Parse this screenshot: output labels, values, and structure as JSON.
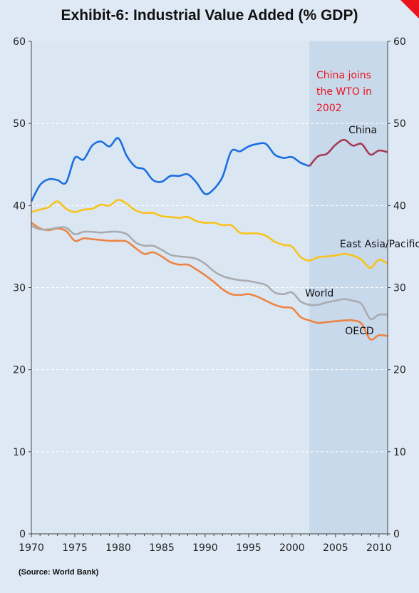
{
  "title": "Exhibit-6: Industrial Value Added (% GDP)",
  "source": "(Source: World Bank)",
  "colors": {
    "background": "#dfe9f5",
    "plot": "#dbe6f3",
    "shade": "#c9d9ec",
    "china": "#1a6fe0",
    "china_post_wto": "#a43c55",
    "east_asia": "#f7c31c",
    "world": "#a9abaf",
    "oecd": "#ed8443",
    "annotation": "#e8141b",
    "corner": "#e8141b"
  },
  "chart_data": {
    "type": "line",
    "title": "Exhibit-6: Industrial Value Added (% GDP)",
    "xlabel": "",
    "ylabel": "",
    "xlim": [
      1970,
      2011
    ],
    "ylim": [
      0,
      60
    ],
    "x_ticks": [
      1970,
      1975,
      1980,
      1985,
      1990,
      1995,
      2000,
      2005,
      2010
    ],
    "y_ticks": [
      0,
      10,
      20,
      30,
      40,
      50,
      60
    ],
    "grid": "horizontal dashed",
    "secondary_y_axis": true,
    "shaded_region": {
      "from": 2002,
      "to": 2011
    },
    "annotation": {
      "lines": [
        "China joins",
        "the WTO in",
        "2002"
      ],
      "x": 2002.8,
      "y": 55.5
    },
    "x": [
      1970,
      1971,
      1972,
      1973,
      1974,
      1975,
      1976,
      1977,
      1978,
      1979,
      1980,
      1981,
      1982,
      1983,
      1984,
      1985,
      1986,
      1987,
      1988,
      1989,
      1990,
      1991,
      1992,
      1993,
      1994,
      1995,
      1996,
      1997,
      1998,
      1999,
      2000,
      2001,
      2002,
      2003,
      2004,
      2005,
      2006,
      2007,
      2008,
      2009,
      2010,
      2011
    ],
    "series": [
      {
        "name": "China",
        "color_key": "china",
        "post_wto_color_key": "china_post_wto",
        "split_x": 2002,
        "label_x": 2006.5,
        "label_y": 48.8,
        "values": [
          40.5,
          42.5,
          43.2,
          43.1,
          42.8,
          45.8,
          45.6,
          47.3,
          47.8,
          47.2,
          48.2,
          46.0,
          44.7,
          44.4,
          43.1,
          42.9,
          43.6,
          43.6,
          43.8,
          42.8,
          41.4,
          42.0,
          43.5,
          46.6,
          46.6,
          47.2,
          47.5,
          47.5,
          46.2,
          45.8,
          45.9,
          45.2,
          44.8,
          46.0,
          46.3,
          47.4,
          48.0,
          47.3,
          47.5,
          46.2,
          46.7,
          46.5
        ]
      },
      {
        "name": "East Asia/Pacific",
        "color_key": "east_asia",
        "label_x": 2005.5,
        "label_y": 34.9,
        "values": [
          39.2,
          39.5,
          39.8,
          40.5,
          39.6,
          39.2,
          39.5,
          39.6,
          40.1,
          40.0,
          40.7,
          40.2,
          39.4,
          39.1,
          39.1,
          38.7,
          38.6,
          38.5,
          38.6,
          38.1,
          37.9,
          37.9,
          37.6,
          37.6,
          36.7,
          36.6,
          36.6,
          36.3,
          35.6,
          35.2,
          35.0,
          33.7,
          33.3,
          33.7,
          33.8,
          33.9,
          34.1,
          33.9,
          33.4,
          32.4,
          33.4,
          32.9
        ]
      },
      {
        "name": "World",
        "color_key": "world",
        "label_x": 2001.5,
        "label_y": 28.9,
        "values": [
          37.5,
          37.1,
          37.1,
          37.3,
          37.3,
          36.5,
          36.8,
          36.8,
          36.7,
          36.8,
          36.8,
          36.5,
          35.5,
          35.1,
          35.1,
          34.6,
          34.0,
          33.8,
          33.7,
          33.5,
          32.9,
          32.0,
          31.4,
          31.1,
          30.9,
          30.8,
          30.6,
          30.3,
          29.4,
          29.2,
          29.4,
          28.3,
          27.9,
          27.9,
          28.2,
          28.4,
          28.6,
          28.4,
          28.0,
          26.2,
          26.7,
          26.7
        ]
      },
      {
        "name": "OECD",
        "color_key": "oecd",
        "label_x": 2006.1,
        "label_y": 24.3,
        "values": [
          37.9,
          37.2,
          37.0,
          37.2,
          36.9,
          35.7,
          36.0,
          35.9,
          35.8,
          35.7,
          35.7,
          35.6,
          34.8,
          34.1,
          34.3,
          33.8,
          33.1,
          32.8,
          32.8,
          32.2,
          31.5,
          30.7,
          29.8,
          29.2,
          29.1,
          29.2,
          28.9,
          28.4,
          27.9,
          27.6,
          27.5,
          26.4,
          26.0,
          25.7,
          25.8,
          25.9,
          26.0,
          26.0,
          25.6,
          23.7,
          24.2,
          24.1
        ]
      }
    ]
  }
}
